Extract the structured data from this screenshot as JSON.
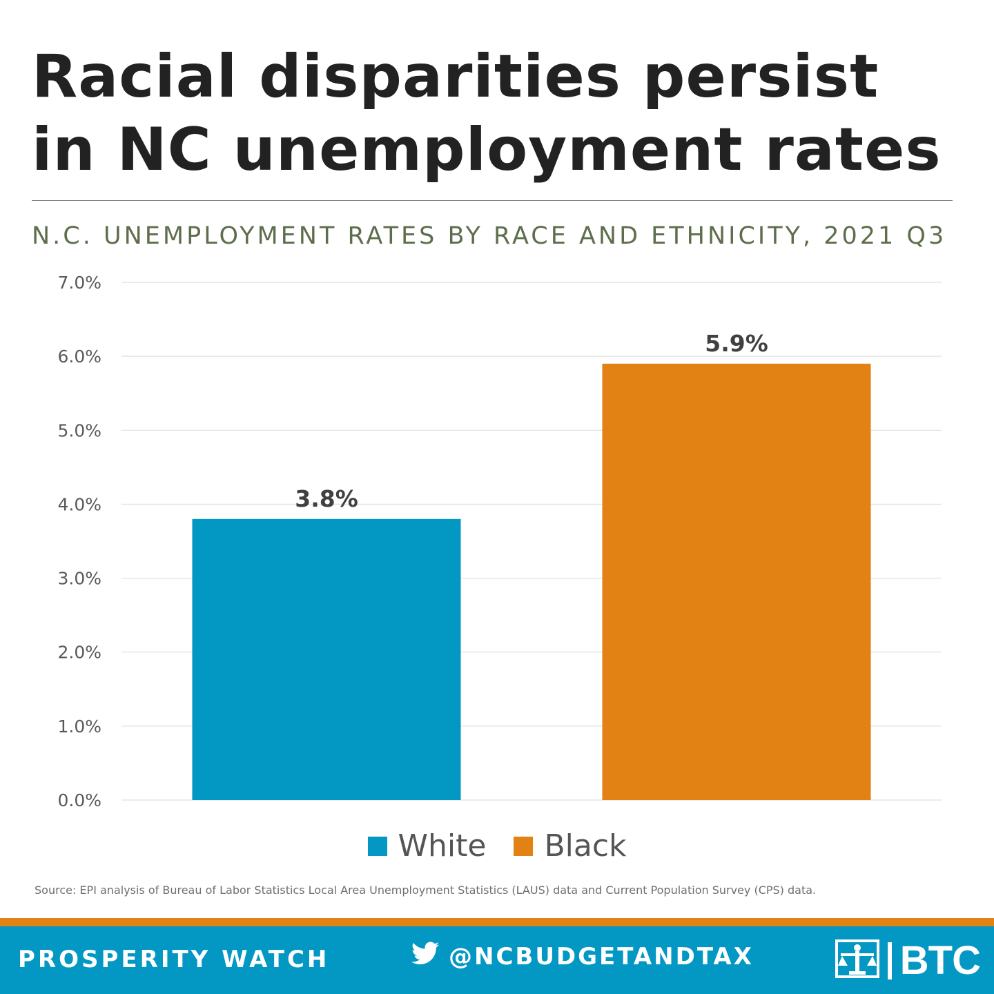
{
  "headline": {
    "line1": "Racial disparities persist",
    "line2": "in NC unemployment rates"
  },
  "chart_data": {
    "type": "bar",
    "title": "N.C. UNEMPLOYMENT RATES BY RACE AND ETHNICITY, 2021 Q3",
    "categories": [
      "White",
      "Black"
    ],
    "values": [
      3.8,
      5.9
    ],
    "data_labels": [
      "3.8%",
      "5.9%"
    ],
    "colors": [
      "#0397c3",
      "#e38214"
    ],
    "ylim": [
      0,
      7
    ],
    "yticks": [
      0,
      1,
      2,
      3,
      4,
      5,
      6,
      7
    ],
    "ytick_labels": [
      "0.0%",
      "1.0%",
      "2.0%",
      "3.0%",
      "4.0%",
      "5.0%",
      "6.0%",
      "7.0%"
    ],
    "grid": true,
    "legend_position": "bottom",
    "legend": [
      {
        "name": "White",
        "color": "#0397c3"
      },
      {
        "name": "Black",
        "color": "#e38214"
      }
    ]
  },
  "source": "Source: EPI analysis of Bureau of Labor Statistics Local Area Unemployment Statistics (LAUS) data and Current Population Survey (CPS) data.",
  "footer": {
    "left_label": "PROSPERITY WATCH",
    "twitter_handle": "@NCBUDGETANDTAX",
    "logo_text": "BTC",
    "colors": {
      "bar": "#0397c3",
      "stripe": "#e38214"
    }
  }
}
